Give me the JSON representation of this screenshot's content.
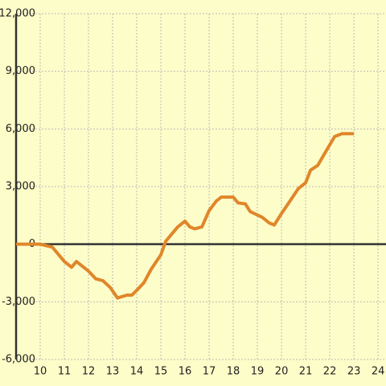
{
  "chart_data": {
    "type": "line",
    "x": [
      9,
      10,
      10.5,
      11,
      11.3,
      11.5,
      12,
      12.3,
      12.6,
      12.9,
      13.2,
      13.6,
      13.8,
      14.0,
      14.3,
      14.6,
      15.0,
      15.2,
      15.5,
      15.7,
      16.0,
      16.2,
      16.4,
      16.7,
      17.0,
      17.3,
      17.5,
      18.0,
      18.2,
      18.5,
      18.7,
      19.2,
      19.5,
      19.7,
      20.0,
      20.3,
      20.7,
      21.0,
      21.2,
      21.5,
      21.8,
      22.2,
      22.5,
      23.0
    ],
    "series": [
      {
        "color": "#e0862a",
        "values": [
          0,
          0,
          -150,
          -900,
          -1200,
          -900,
          -1400,
          -1800,
          -1900,
          -2250,
          -2800,
          -2650,
          -2650,
          -2400,
          -2000,
          -1300,
          -550,
          150,
          600,
          900,
          1200,
          900,
          800,
          900,
          1750,
          2250,
          2450,
          2450,
          2150,
          2100,
          1700,
          1400,
          1100,
          1000,
          1600,
          2150,
          2900,
          3200,
          3850,
          4100,
          4750,
          5600,
          5750,
          5750
        ]
      }
    ],
    "xlim": [
      9,
      24.33
    ],
    "xticks": [
      10,
      11,
      12,
      13,
      14,
      15,
      16,
      17,
      18,
      19,
      20,
      21,
      22,
      23,
      24
    ],
    "ylim": [
      -6000,
      12000
    ],
    "yticks": [
      {
        "value": -6000,
        "label": "-6,000"
      },
      {
        "value": -3000,
        "label": "-3,000"
      },
      0,
      {
        "value": 3000,
        "label": "3,000"
      },
      {
        "value": 6000,
        "label": "6,000"
      },
      {
        "value": 9000,
        "label": "9,000"
      },
      {
        "value": 12000,
        "label": "12,000"
      }
    ],
    "grid": true
  }
}
